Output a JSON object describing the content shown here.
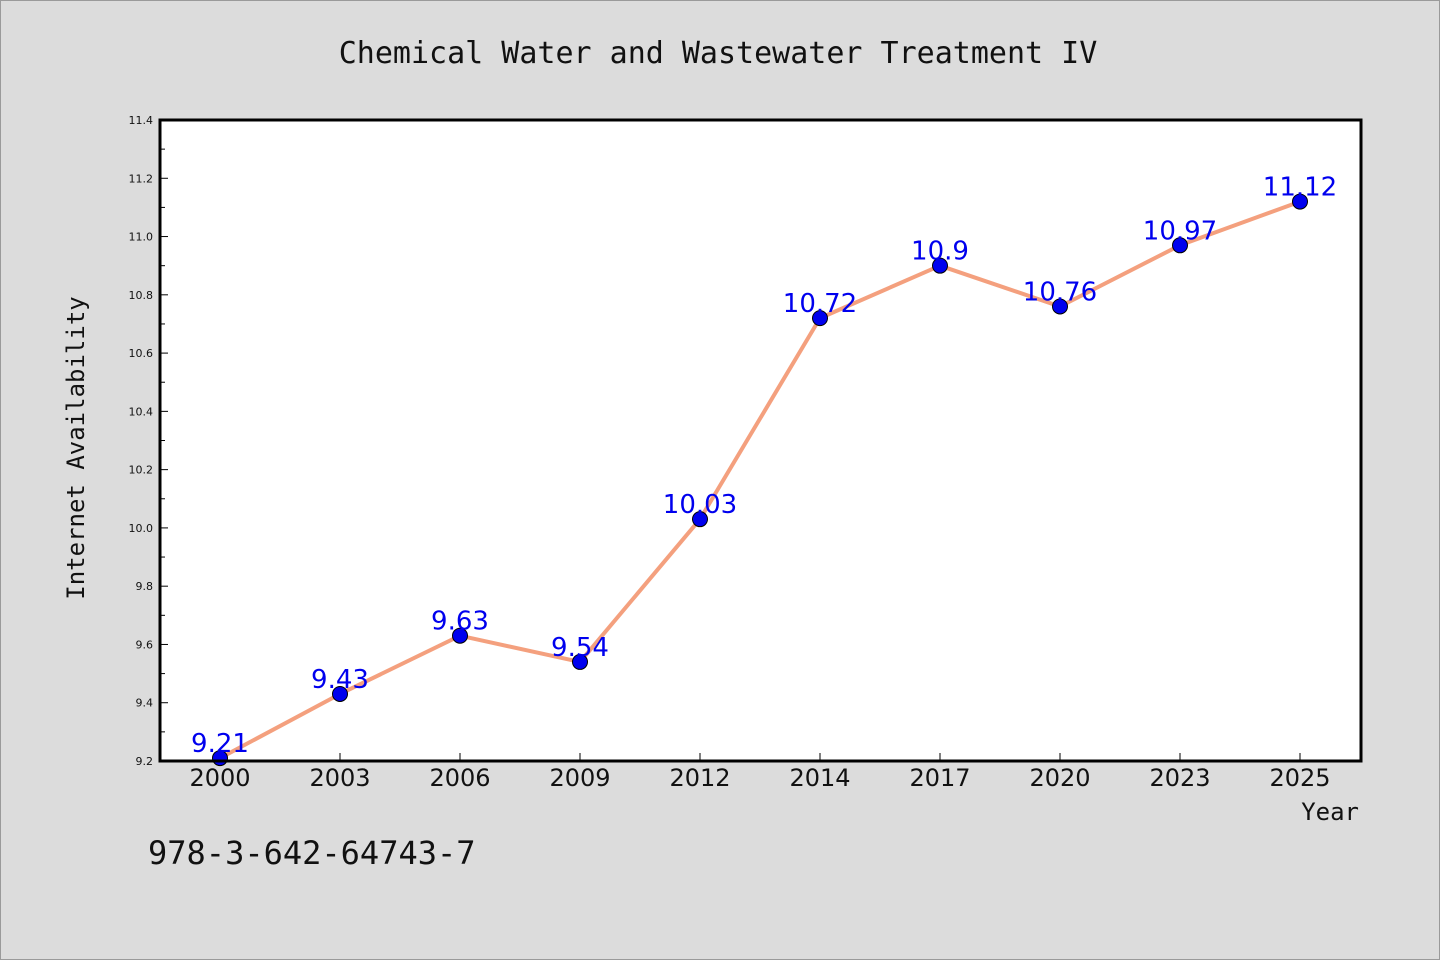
{
  "chart_data": {
    "type": "line",
    "title": "Chemical Water and Wastewater Treatment IV",
    "xlabel": "Year",
    "ylabel": "Internet Availability",
    "categories": [
      "2000",
      "2003",
      "2006",
      "2009",
      "2012",
      "2014",
      "2017",
      "2020",
      "2023",
      "2025"
    ],
    "series": [
      {
        "values": [
          9.21,
          9.43,
          9.63,
          9.54,
          10.03,
          10.72,
          10.9,
          10.76,
          10.97,
          11.12
        ]
      }
    ],
    "data_labels": [
      "9.21",
      "9.43",
      "9.63",
      "9.54",
      "10.03",
      "10.72",
      "10.9",
      "10.76",
      "10.97",
      "11.12"
    ],
    "ylim": [
      9.2,
      11.4
    ],
    "yticks": [
      "9.2",
      "9.4",
      "9.6",
      "9.8",
      "10.0",
      "10.2",
      "10.4",
      "10.6",
      "10.8",
      "11.0",
      "11.2",
      "11.4"
    ],
    "grid": false,
    "legend": "none",
    "colors": {
      "line": "#f4a07e",
      "marker": "#0000ee",
      "label": "#0000ee",
      "background": "#dcdcdc",
      "plot_background": "#ffffff"
    }
  },
  "footer": {
    "isbn": "978-3-642-64743-7"
  }
}
